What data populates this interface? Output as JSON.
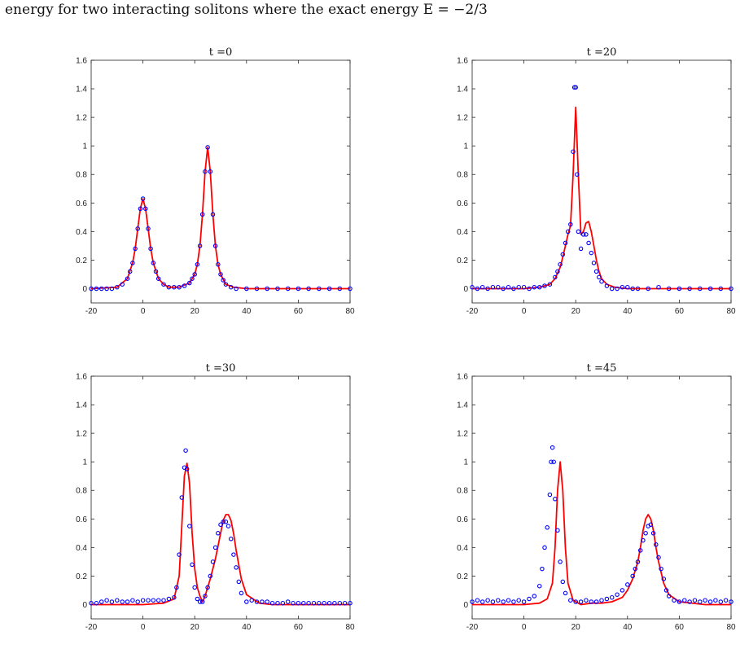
{
  "caption": "energy for two interacting solitons where the exact energy E = −2/3",
  "colors": {
    "exact": "#ff0000",
    "numerical": "#0000ff",
    "axis": "#222222"
  },
  "chart_data": [
    {
      "type": "line",
      "title": "t =0",
      "xlim": [
        -20,
        80
      ],
      "ylim": [
        -0.1,
        1.6
      ],
      "xticks": [
        -20,
        0,
        20,
        40,
        60,
        80
      ],
      "yticks": [
        0,
        0.2,
        0.4,
        0.6,
        0.8,
        1,
        1.2,
        1.4,
        1.6
      ],
      "series": [
        {
          "style": "line",
          "color": "#ff0000",
          "x": [
            -20,
            -10,
            -6,
            -4,
            -3,
            -2,
            -1,
            0,
            1,
            2,
            3,
            4,
            6,
            8,
            10,
            14,
            18,
            20,
            21,
            22,
            23,
            24,
            25,
            26,
            27,
            28,
            29,
            30,
            32,
            35,
            40,
            50,
            60,
            70,
            80
          ],
          "y": [
            0,
            0.01,
            0.07,
            0.18,
            0.28,
            0.42,
            0.56,
            0.63,
            0.56,
            0.42,
            0.28,
            0.18,
            0.07,
            0.03,
            0.01,
            0.01,
            0.04,
            0.1,
            0.17,
            0.3,
            0.52,
            0.82,
            0.99,
            0.82,
            0.52,
            0.3,
            0.17,
            0.1,
            0.03,
            0.01,
            0,
            0,
            0,
            0,
            0
          ]
        },
        {
          "style": "markers",
          "color": "#0000ff",
          "x": [
            -20,
            -18,
            -16,
            -14,
            -12,
            -10,
            -8,
            -6,
            -5,
            -4,
            -3,
            -2,
            -1,
            0,
            1,
            2,
            3,
            4,
            5,
            6,
            8,
            10,
            12,
            14,
            16,
            18,
            19,
            20,
            21,
            22,
            23,
            24,
            25,
            26,
            27,
            28,
            29,
            30,
            31,
            32,
            34,
            36,
            40,
            44,
            48,
            52,
            56,
            60,
            64,
            68,
            72,
            76,
            80
          ],
          "y": [
            0,
            0,
            0,
            0,
            0,
            0.01,
            0.03,
            0.07,
            0.12,
            0.18,
            0.28,
            0.42,
            0.56,
            0.63,
            0.56,
            0.42,
            0.28,
            0.18,
            0.12,
            0.07,
            0.03,
            0.01,
            0.01,
            0.01,
            0.02,
            0.04,
            0.07,
            0.1,
            0.17,
            0.3,
            0.52,
            0.82,
            0.99,
            0.82,
            0.52,
            0.3,
            0.17,
            0.1,
            0.06,
            0.03,
            0.01,
            0,
            0,
            0,
            0,
            0,
            0,
            0,
            0,
            0,
            0,
            0,
            0
          ]
        }
      ]
    },
    {
      "type": "line",
      "title": "t =20",
      "xlim": [
        -20,
        80
      ],
      "ylim": [
        -0.1,
        1.6
      ],
      "xticks": [
        -20,
        0,
        20,
        40,
        60,
        80
      ],
      "yticks": [
        0,
        0.2,
        0.4,
        0.6,
        0.8,
        1,
        1.2,
        1.4,
        1.6
      ],
      "series": [
        {
          "style": "line",
          "color": "#ff0000",
          "x": [
            -20,
            0,
            6,
            10,
            12,
            14,
            15,
            16,
            17,
            18,
            19,
            20,
            21,
            22,
            23,
            24,
            25,
            26,
            27,
            28,
            29,
            30,
            32,
            35,
            40,
            50,
            60,
            70,
            80
          ],
          "y": [
            0,
            0,
            0.01,
            0.03,
            0.07,
            0.15,
            0.22,
            0.3,
            0.38,
            0.44,
            0.8,
            1.27,
            0.8,
            0.38,
            0.4,
            0.46,
            0.47,
            0.4,
            0.3,
            0.2,
            0.12,
            0.07,
            0.03,
            0.01,
            0,
            0,
            0,
            0,
            0
          ]
        },
        {
          "style": "markers",
          "color": "#0000ff",
          "x": [
            -20,
            -18,
            -16,
            -14,
            -12,
            -10,
            -8,
            -6,
            -4,
            -2,
            0,
            2,
            4,
            6,
            8,
            10,
            12,
            13,
            14,
            15,
            16,
            17,
            18,
            19,
            19.5,
            20,
            20.5,
            21,
            22,
            23,
            24,
            25,
            26,
            27,
            28,
            29,
            30,
            32,
            34,
            36,
            38,
            40,
            42,
            44,
            48,
            52,
            56,
            60,
            64,
            68,
            72,
            76,
            80
          ],
          "y": [
            0.01,
            0,
            0.01,
            0,
            0.01,
            0.01,
            0,
            0.01,
            0,
            0.01,
            0.01,
            0,
            0.01,
            0.01,
            0.02,
            0.03,
            0.08,
            0.12,
            0.17,
            0.24,
            0.32,
            0.4,
            0.45,
            0.96,
            1.41,
            1.41,
            0.8,
            0.4,
            0.28,
            0.38,
            0.38,
            0.32,
            0.25,
            0.18,
            0.12,
            0.08,
            0.05,
            0.02,
            0,
            0,
            0.01,
            0.01,
            0,
            0,
            0,
            0.01,
            0,
            0,
            0,
            0,
            0,
            0,
            0
          ]
        }
      ]
    },
    {
      "type": "line",
      "title": "t =30",
      "xlim": [
        -20,
        80
      ],
      "ylim": [
        -0.1,
        1.6
      ],
      "xticks": [
        -20,
        0,
        20,
        40,
        60,
        80
      ],
      "yticks": [
        0,
        0.2,
        0.4,
        0.6,
        0.8,
        1,
        1.2,
        1.4,
        1.6
      ],
      "series": [
        {
          "style": "line",
          "color": "#ff0000",
          "x": [
            -20,
            0,
            8,
            12,
            14,
            15,
            16,
            17,
            18,
            19,
            20,
            21,
            22,
            23,
            24,
            26,
            28,
            30,
            31,
            32,
            33,
            34,
            35,
            36,
            38,
            40,
            45,
            50,
            60,
            80
          ],
          "y": [
            0,
            0,
            0.01,
            0.04,
            0.2,
            0.55,
            0.9,
            0.99,
            0.85,
            0.5,
            0.25,
            0.12,
            0.06,
            0.02,
            0.06,
            0.18,
            0.32,
            0.5,
            0.59,
            0.63,
            0.63,
            0.59,
            0.5,
            0.38,
            0.18,
            0.07,
            0.01,
            0,
            0,
            0
          ],
          "note": ""
        },
        {
          "style": "markers",
          "color": "#0000ff",
          "x": [
            -20,
            -18,
            -16,
            -14,
            -12,
            -10,
            -8,
            -6,
            -4,
            -2,
            0,
            2,
            4,
            6,
            8,
            10,
            12,
            13,
            14,
            15,
            16,
            16.5,
            17,
            18,
            19,
            20,
            21,
            22,
            23,
            24,
            25,
            26,
            27,
            28,
            29,
            30,
            31,
            32,
            33,
            34,
            35,
            36,
            37,
            38,
            40,
            42,
            44,
            46,
            48,
            50,
            52,
            54,
            56,
            58,
            60,
            62,
            64,
            66,
            68,
            70,
            72,
            74,
            76,
            78,
            80
          ],
          "y": [
            0.01,
            0.01,
            0.02,
            0.03,
            0.02,
            0.03,
            0.02,
            0.02,
            0.03,
            0.02,
            0.03,
            0.03,
            0.03,
            0.03,
            0.03,
            0.04,
            0.05,
            0.12,
            0.35,
            0.75,
            0.96,
            1.08,
            0.95,
            0.55,
            0.28,
            0.12,
            0.04,
            0.02,
            0.02,
            0.06,
            0.12,
            0.2,
            0.3,
            0.4,
            0.5,
            0.56,
            0.58,
            0.58,
            0.55,
            0.46,
            0.35,
            0.26,
            0.16,
            0.08,
            0.02,
            0.03,
            0.02,
            0.02,
            0.02,
            0.01,
            0.01,
            0.01,
            0.02,
            0.01,
            0.01,
            0.01,
            0.01,
            0.01,
            0.01,
            0.01,
            0.01,
            0.01,
            0.01,
            0.01,
            0.01
          ]
        }
      ]
    },
    {
      "type": "line",
      "title": "t =45",
      "xlim": [
        -20,
        80
      ],
      "ylim": [
        -0.1,
        1.6
      ],
      "xticks": [
        -20,
        0,
        20,
        40,
        60,
        80
      ],
      "yticks": [
        0,
        0.2,
        0.4,
        0.6,
        0.8,
        1,
        1.2,
        1.4,
        1.6
      ],
      "series": [
        {
          "style": "line",
          "color": "#ff0000",
          "x": [
            -20,
            0,
            6,
            9,
            11,
            12,
            13,
            14,
            15,
            16,
            17,
            19,
            22,
            26,
            30,
            34,
            38,
            40,
            42,
            44,
            45,
            46,
            47,
            48,
            49,
            50,
            51,
            52,
            54,
            56,
            60,
            70,
            80
          ],
          "y": [
            0,
            0,
            0.01,
            0.04,
            0.15,
            0.4,
            0.8,
            1.0,
            0.8,
            0.4,
            0.15,
            0.03,
            0,
            0.01,
            0.01,
            0.02,
            0.05,
            0.1,
            0.18,
            0.3,
            0.4,
            0.52,
            0.6,
            0.63,
            0.6,
            0.52,
            0.4,
            0.3,
            0.15,
            0.07,
            0.02,
            0,
            0
          ]
        },
        {
          "style": "markers",
          "color": "#0000ff",
          "x": [
            -20,
            -18,
            -16,
            -14,
            -12,
            -10,
            -8,
            -6,
            -4,
            -2,
            0,
            2,
            4,
            6,
            7,
            8,
            9,
            10,
            10.5,
            11,
            11.5,
            12,
            13,
            14,
            15,
            16,
            18,
            20,
            22,
            24,
            26,
            28,
            30,
            32,
            34,
            36,
            38,
            40,
            42,
            43,
            44,
            45,
            46,
            47,
            48,
            49,
            50,
            51,
            52,
            53,
            54,
            55,
            56,
            58,
            60,
            62,
            64,
            66,
            68,
            70,
            72,
            74,
            76,
            78,
            80
          ],
          "y": [
            0.02,
            0.03,
            0.02,
            0.03,
            0.02,
            0.03,
            0.02,
            0.03,
            0.02,
            0.03,
            0.02,
            0.04,
            0.06,
            0.13,
            0.25,
            0.4,
            0.54,
            0.77,
            1.0,
            1.1,
            1.0,
            0.74,
            0.52,
            0.3,
            0.16,
            0.08,
            0.03,
            0.02,
            0.02,
            0.03,
            0.02,
            0.02,
            0.03,
            0.04,
            0.05,
            0.07,
            0.1,
            0.14,
            0.2,
            0.25,
            0.3,
            0.38,
            0.45,
            0.5,
            0.55,
            0.56,
            0.5,
            0.42,
            0.33,
            0.25,
            0.18,
            0.1,
            0.06,
            0.03,
            0.02,
            0.03,
            0.02,
            0.03,
            0.02,
            0.03,
            0.02,
            0.03,
            0.02,
            0.03,
            0.02
          ]
        }
      ]
    }
  ]
}
